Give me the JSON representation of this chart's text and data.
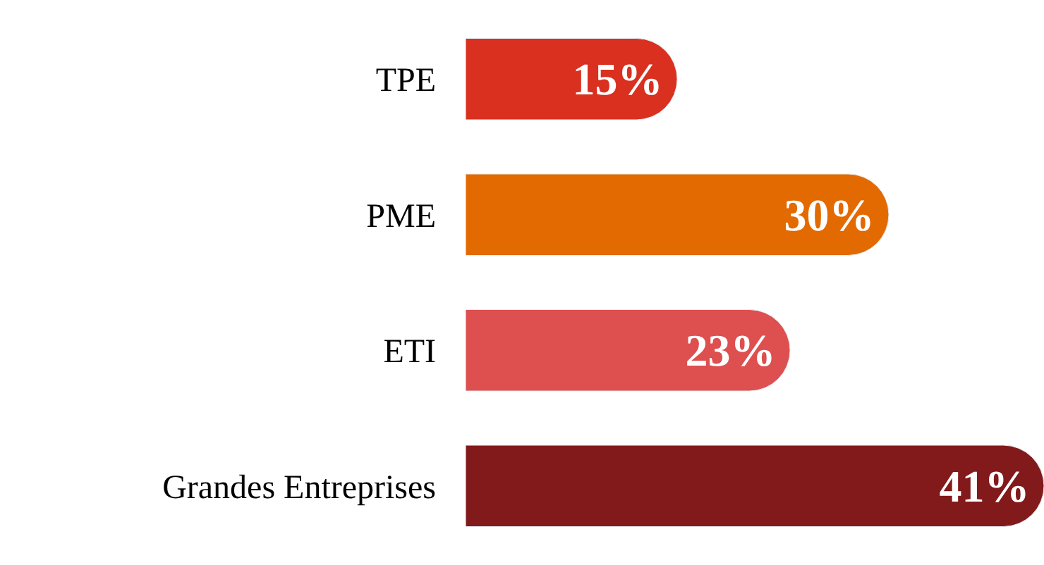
{
  "chart_data": {
    "type": "bar",
    "orientation": "horizontal",
    "categories": [
      "TPE",
      "PME",
      "ETI",
      "Grandes Entreprises"
    ],
    "values": [
      15,
      30,
      23,
      41
    ],
    "colors": [
      "#d93020",
      "#e36a00",
      "#de4f4f",
      "#82191a"
    ],
    "value_labels": [
      "15%",
      "30%",
      "23%",
      "41%"
    ]
  }
}
